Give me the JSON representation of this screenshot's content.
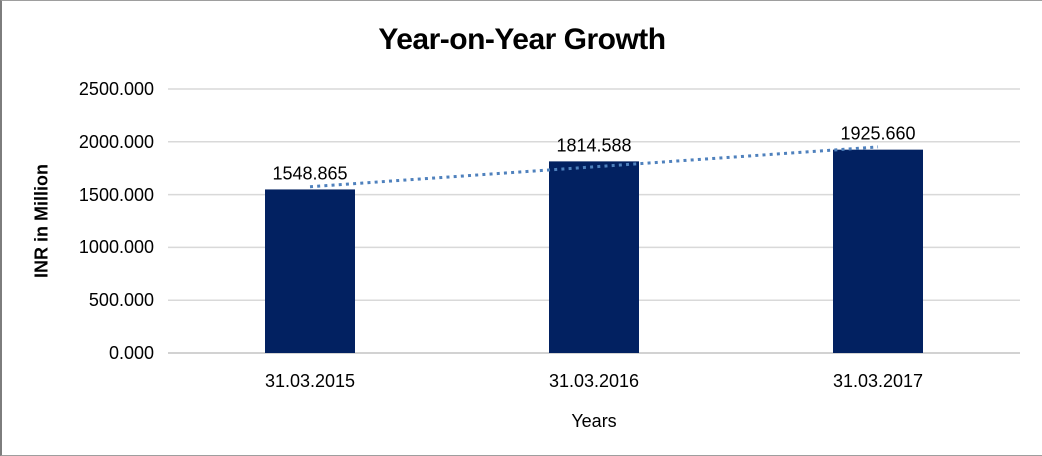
{
  "chart_data": {
    "type": "bar",
    "title": "Year-on-Year Growth",
    "categories": [
      "31.03.2015",
      "31.03.2016",
      "31.03.2017"
    ],
    "values": [
      1548.865,
      1814.588,
      1925.66
    ],
    "data_labels": [
      "1548.865",
      "1814.588",
      "1925.660"
    ],
    "xlabel": "Years",
    "ylabel": "INR in Million",
    "ylim": [
      0,
      2500
    ],
    "ytick_step": 500,
    "ytick_labels": [
      "0.000",
      "500.000",
      "1000.000",
      "1500.000",
      "2000.000",
      "2500.000"
    ],
    "grid": true,
    "legend_position": "none",
    "bar_color": "#022161",
    "gridline_color": "#d9d9d9",
    "axisline_color": "#c3c3c3",
    "trendline": {
      "type": "linear",
      "style": "dotted",
      "color": "#4f81bd"
    }
  }
}
